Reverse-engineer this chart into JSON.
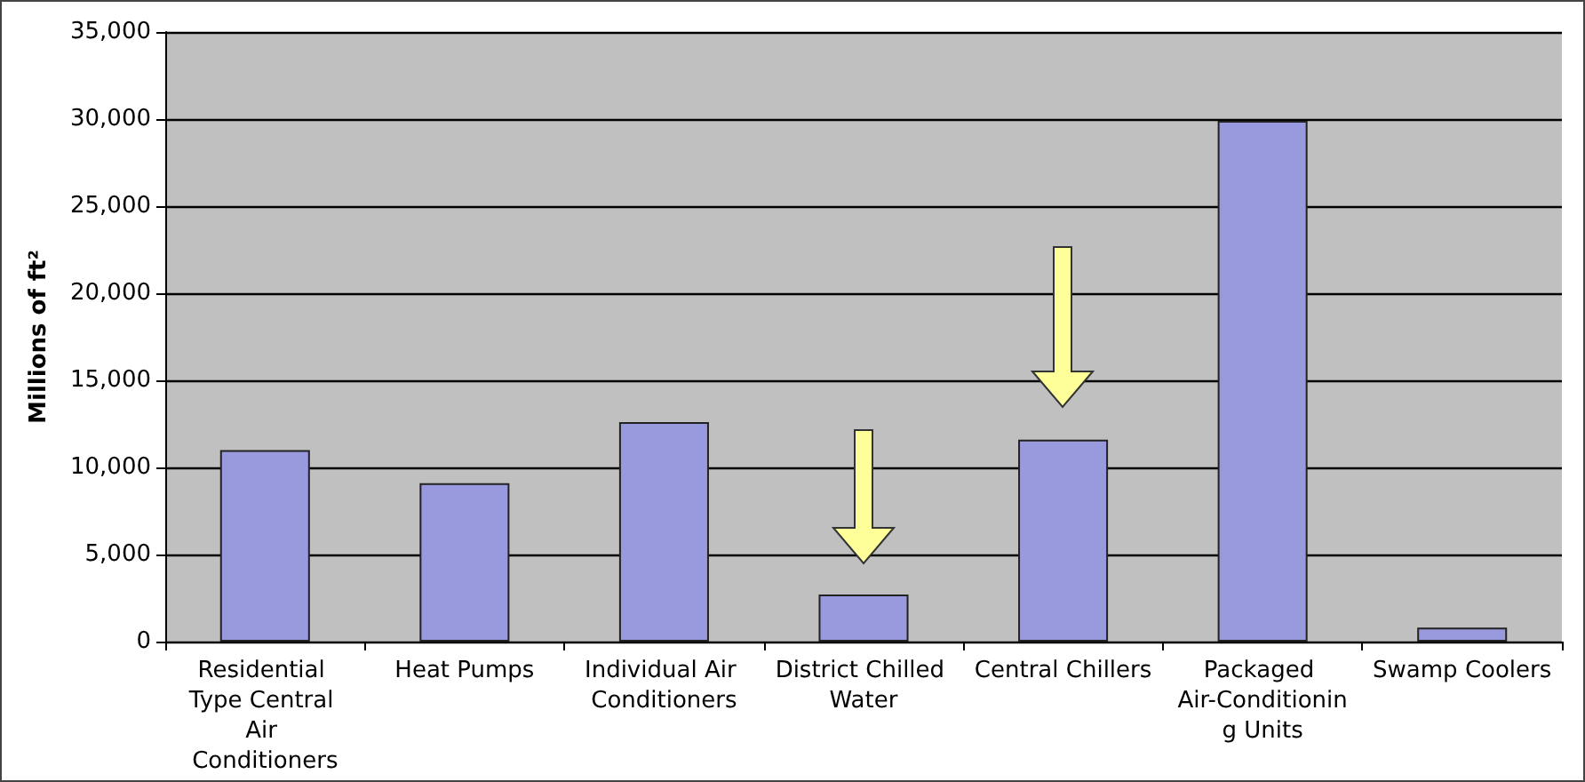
{
  "chart_data": {
    "type": "bar",
    "ylabel": "Millions of ft²",
    "categories": [
      "Residential Type Central Air Conditioners",
      "Heat Pumps",
      "Individual Air Conditioners",
      "District Chilled Water",
      "Central Chillers",
      "Packaged Air-Conditioning Units",
      "Swamp Coolers"
    ],
    "values": [
      11000,
      9100,
      12600,
      2700,
      11600,
      29900,
      800
    ],
    "color": "#9999dd",
    "ylim": [
      0,
      35000
    ],
    "yticks": [
      0,
      {
        "value": 5000,
        "label": "5,000"
      },
      {
        "value": 10000,
        "label": "10,000"
      },
      {
        "value": 15000,
        "label": "15,000"
      },
      {
        "value": 20000,
        "label": "20,000"
      },
      {
        "value": 25000,
        "label": "25,000"
      },
      {
        "value": 30000,
        "label": "30,000"
      },
      {
        "value": 35000,
        "label": "35,000"
      }
    ],
    "grid": "y"
  }
}
